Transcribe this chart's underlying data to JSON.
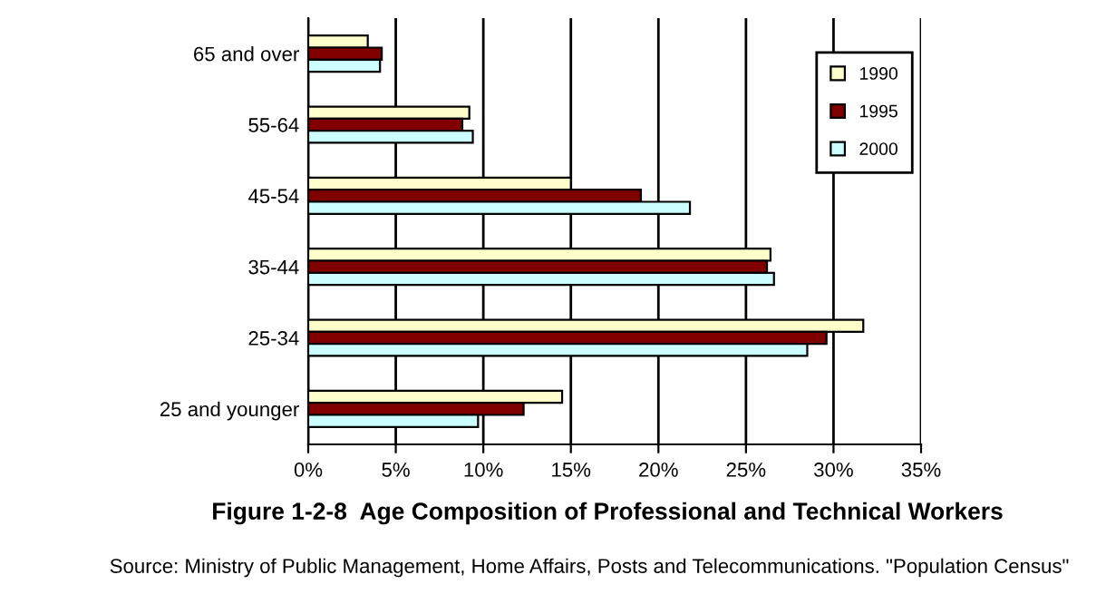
{
  "chart_data": {
    "type": "bar",
    "orientation": "horizontal",
    "title": "Figure 1-2-8  Age Composition of Professional and Technical Workers",
    "categories": [
      "65 and over",
      "55-64",
      "45-54",
      "35-44",
      "25-34",
      "25 and younger"
    ],
    "series": [
      {
        "name": "1990",
        "color": "#ffffcc",
        "values": [
          3.4,
          9.2,
          15.0,
          26.4,
          31.7,
          14.5
        ]
      },
      {
        "name": "1995",
        "color": "#800000",
        "values": [
          4.2,
          8.8,
          19.0,
          26.2,
          29.6,
          12.3
        ]
      },
      {
        "name": "2000",
        "color": "#ccffff",
        "values": [
          4.1,
          9.4,
          21.8,
          26.6,
          28.5,
          9.7
        ]
      }
    ],
    "xlim": [
      0,
      35
    ],
    "xticks": [
      {
        "value": 0,
        "label": "0%"
      },
      {
        "value": 5,
        "label": "5%"
      },
      {
        "value": 10,
        "label": "10%"
      },
      {
        "value": 15,
        "label": "15%"
      },
      {
        "value": 20,
        "label": "20%"
      },
      {
        "value": 25,
        "label": "25%"
      },
      {
        "value": 30,
        "label": "30%"
      },
      {
        "value": 35,
        "label": "35%"
      }
    ],
    "grid": "x",
    "legend": "top right",
    "annotations": [
      "Source: Ministry of Public Management, Home Affairs, Posts and Telecommunications. \"Population Census\""
    ]
  }
}
